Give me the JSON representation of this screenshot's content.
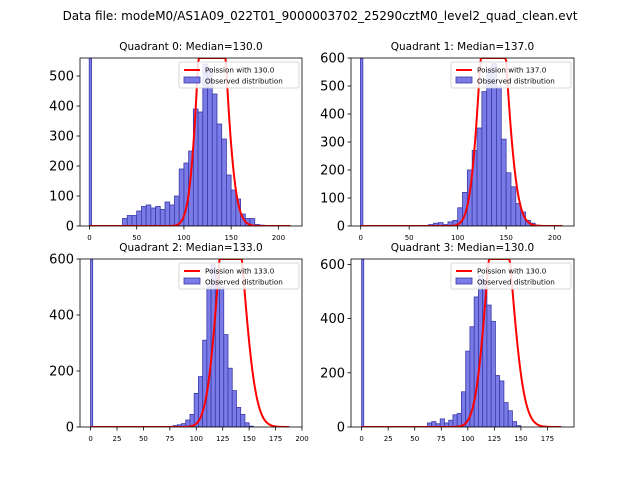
{
  "figure": {
    "suptitle": "Data file: modeM0/AS1A09_022T01_9000003702_25290cztM0_level2_quad_clean.evt"
  },
  "colors": {
    "bar_fill": "#7b7be8",
    "bar_edge": "#3a3aa8",
    "curve": "#ff0000"
  },
  "chart_data": [
    {
      "type": "bar",
      "title": "Quadrant 0: Median=130.0",
      "xlim": [
        -10,
        225
      ],
      "ylim": [
        0,
        560
      ],
      "xticks": [
        0,
        50,
        100,
        150,
        200
      ],
      "xtick_labels": [
        "0",
        "50",
        "100",
        "150",
        "200"
      ],
      "yticks": [
        0,
        100,
        200,
        300,
        400,
        500
      ],
      "ytick_labels": [
        "0",
        "100",
        "200",
        "300",
        "400",
        "500"
      ],
      "bin_width": 5,
      "spike": {
        "x": 1,
        "value": 560
      },
      "bins_start": 35,
      "values": [
        25,
        35,
        35,
        50,
        65,
        70,
        60,
        65,
        55,
        80,
        70,
        100,
        190,
        210,
        250,
        390,
        380,
        540,
        525,
        440,
        340,
        290,
        170,
        120,
        90,
        40,
        25,
        25,
        5,
        3,
        1,
        1
      ],
      "poisson_lambda": 130.0,
      "poisson_scale": 36000,
      "legend": [
        "Poission with 130.0",
        "Observed distribution"
      ]
    },
    {
      "type": "bar",
      "title": "Quadrant 1: Median=137.0",
      "xlim": [
        -10,
        220
      ],
      "ylim": [
        0,
        600
      ],
      "xticks": [
        0,
        50,
        100,
        150,
        200
      ],
      "xtick_labels": [
        "0",
        "50",
        "100",
        "150",
        "200"
      ],
      "yticks": [
        0,
        100,
        200,
        300,
        400,
        500,
        600
      ],
      "ytick_labels": [
        "0",
        "100",
        "200",
        "300",
        "400",
        "500",
        "600"
      ],
      "bin_width": 5,
      "spike": {
        "x": 1,
        "value": 600
      },
      "bins_start": 70,
      "values": [
        5,
        10,
        12,
        5,
        15,
        20,
        65,
        120,
        200,
        270,
        350,
        480,
        560,
        580,
        500,
        310,
        190,
        140,
        80,
        50,
        20,
        10,
        3
      ],
      "poisson_lambda": 137.0,
      "poisson_scale": 33000,
      "legend": [
        "Poission with 137.0",
        "Observed distribution"
      ]
    },
    {
      "type": "bar",
      "title": "Quadrant 2: Median=133.0",
      "xlim": [
        -10,
        200
      ],
      "ylim": [
        0,
        600
      ],
      "xticks": [
        0,
        25,
        50,
        75,
        100,
        125,
        150,
        175,
        200
      ],
      "xtick_labels": [
        "0",
        "25",
        "50",
        "75",
        "100",
        "125",
        "150",
        "175",
        "200"
      ],
      "yticks": [
        0,
        200,
        400,
        600
      ],
      "ytick_labels": [
        "0",
        "200",
        "400",
        "600"
      ],
      "bin_width": 4,
      "spike": {
        "x": 1,
        "value": 600
      },
      "bins_start": 74,
      "values": [
        2,
        5,
        8,
        12,
        25,
        45,
        120,
        180,
        310,
        500,
        580,
        560,
        500,
        330,
        210,
        130,
        70,
        45,
        15,
        3
      ],
      "poisson_lambda": 133.0,
      "poisson_scale": 26500,
      "legend": [
        "Poission with 133.0",
        "Observed distribution"
      ]
    },
    {
      "type": "bar",
      "title": "Quadrant 3: Median=130.0",
      "xlim": [
        -10,
        200
      ],
      "ylim": [
        0,
        620
      ],
      "xticks": [
        0,
        25,
        50,
        75,
        100,
        125,
        150,
        175
      ],
      "xtick_labels": [
        "0",
        "25",
        "50",
        "75",
        "100",
        "125",
        "150",
        "175"
      ],
      "yticks": [
        0,
        200,
        400,
        600
      ],
      "ytick_labels": [
        "0",
        "200",
        "400",
        "600"
      ],
      "bin_width": 4,
      "spike": {
        "x": 1,
        "value": 620
      },
      "bins_start": 62,
      "values": [
        15,
        20,
        12,
        30,
        15,
        25,
        45,
        50,
        130,
        280,
        370,
        480,
        560,
        540,
        450,
        390,
        190,
        170,
        90,
        60,
        20,
        5
      ],
      "poisson_lambda": 130.0,
      "poisson_scale": 26000,
      "legend": [
        "Poission with 130.0",
        "Observed distribution"
      ]
    }
  ]
}
